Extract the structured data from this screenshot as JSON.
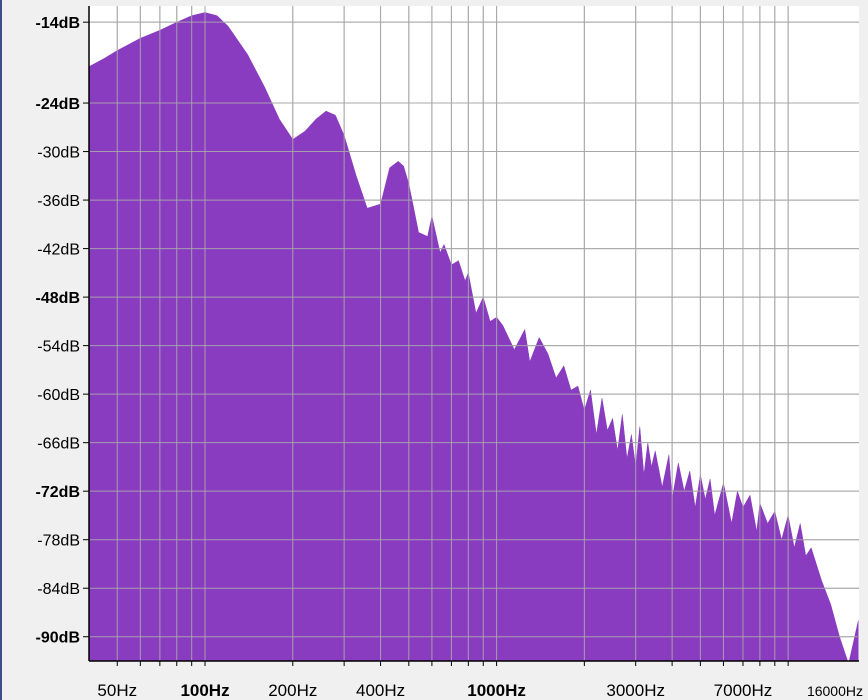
{
  "colors": {
    "spectrum": "#8a3cc0",
    "grid": "#a8a8a8",
    "plot_bg": "#ffffff",
    "panel_bg": "#f0f0f0",
    "window_bg": "#3c4e8a"
  },
  "chart_data": {
    "type": "area",
    "title": "",
    "xlabel": "",
    "ylabel": "",
    "x_scale": "log",
    "xlim": [
      40,
      17500
    ],
    "ylim": [
      -93,
      -12
    ],
    "grid": true,
    "y_ticks": [
      {
        "value": -14,
        "label": "-14dB",
        "major": true
      },
      {
        "value": -24,
        "label": "-24dB",
        "major": true
      },
      {
        "value": -30,
        "label": "-30dB",
        "major": false
      },
      {
        "value": -36,
        "label": "-36dB",
        "major": false
      },
      {
        "value": -42,
        "label": "-42dB",
        "major": false
      },
      {
        "value": -48,
        "label": "-48dB",
        "major": true
      },
      {
        "value": -54,
        "label": "-54dB",
        "major": false
      },
      {
        "value": -60,
        "label": "-60dB",
        "major": false
      },
      {
        "value": -66,
        "label": "-66dB",
        "major": false
      },
      {
        "value": -72,
        "label": "-72dB",
        "major": true
      },
      {
        "value": -78,
        "label": "-78dB",
        "major": false
      },
      {
        "value": -84,
        "label": "-84dB",
        "major": false
      },
      {
        "value": -90,
        "label": "-90dB",
        "major": true
      }
    ],
    "x_gridlines": [
      50,
      60,
      70,
      80,
      90,
      100,
      200,
      300,
      400,
      500,
      600,
      700,
      800,
      900,
      1000,
      2000,
      3000,
      4000,
      5000,
      6000,
      7000,
      8000,
      9000,
      10000
    ],
    "x_ticks": [
      {
        "value": 50,
        "label": "50Hz",
        "major": false
      },
      {
        "value": 100,
        "label": "100Hz",
        "major": true
      },
      {
        "value": 200,
        "label": "200Hz",
        "major": false
      },
      {
        "value": 400,
        "label": "400Hz",
        "major": false
      },
      {
        "value": 1000,
        "label": "1000Hz",
        "major": true
      },
      {
        "value": 3000,
        "label": "3000Hz",
        "major": false
      },
      {
        "value": 7000,
        "label": "7000Hz",
        "major": false
      },
      {
        "value": 16000,
        "label": "16000Hz",
        "major": false
      }
    ],
    "series": [
      {
        "x": [
          40,
          45,
          50,
          60,
          70,
          80,
          90,
          100,
          110,
          120,
          140,
          160,
          180,
          200,
          220,
          240,
          260,
          280,
          300,
          330,
          360,
          400,
          430,
          460,
          480,
          500,
          540,
          580,
          600,
          640,
          660,
          700,
          740,
          780,
          800,
          850,
          900,
          950,
          1000,
          1050,
          1150,
          1250,
          1300,
          1400,
          1500,
          1600,
          1700,
          1800,
          1900,
          2000,
          2100,
          2200,
          2300,
          2400,
          2500,
          2600,
          2700,
          2800,
          2900,
          3000,
          3100,
          3200,
          3300,
          3400,
          3500,
          3700,
          3900,
          4000,
          4200,
          4400,
          4600,
          4800,
          5000,
          5200,
          5400,
          5600,
          6000,
          6400,
          6700,
          7000,
          7400,
          7800,
          8000,
          8500,
          9000,
          9500,
          10000,
          10500,
          11000,
          11500,
          12000,
          13000,
          14000,
          15000,
          16000,
          16200,
          17400
        ],
        "y": [
          -19.5,
          -18.5,
          -17.5,
          -16,
          -15,
          -14,
          -13.2,
          -12.8,
          -13.2,
          -14.5,
          -18,
          -22,
          -26,
          -28.5,
          -27.5,
          -26,
          -25,
          -25.5,
          -28,
          -33,
          -37,
          -36.5,
          -32,
          -31.2,
          -31.8,
          -34,
          -40,
          -40.5,
          -38,
          -42.5,
          -41.5,
          -44,
          -43.5,
          -46,
          -45,
          -50,
          -48,
          -51,
          -50.5,
          -51.5,
          -54.5,
          -52,
          -56,
          -53,
          -55,
          -58,
          -56.5,
          -59.5,
          -59,
          -62,
          -59.5,
          -65,
          -60.5,
          -64.5,
          -63,
          -67,
          -62.5,
          -68,
          -65,
          -69,
          -64,
          -70,
          -66,
          -69,
          -67,
          -71.5,
          -67.5,
          -73,
          -68.5,
          -72,
          -69.5,
          -74,
          -70,
          -73,
          -70.5,
          -75,
          -71,
          -76,
          -72,
          -74,
          -72.5,
          -77,
          -73.5,
          -76,
          -74.5,
          -78,
          -75,
          -79,
          -76,
          -80,
          -79,
          -83,
          -86,
          -90,
          -93,
          -93,
          -88
        ]
      }
    ]
  }
}
